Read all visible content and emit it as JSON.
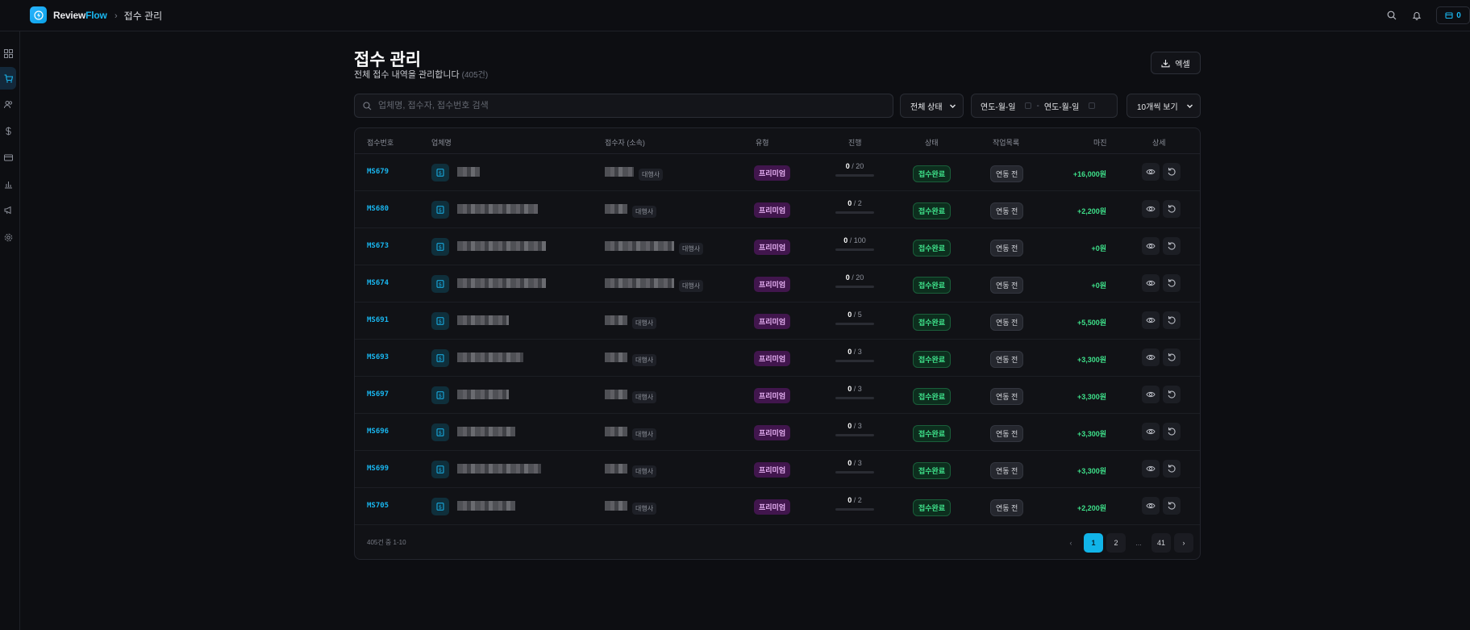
{
  "app": {
    "brand_primary": "Review",
    "brand_secondary": "Flow",
    "breadcrumb": "접수 관리",
    "credit_value": "0",
    "accent_color": "#19b6ef"
  },
  "sidebar": {
    "items": [
      {
        "icon": "dashboard-icon"
      },
      {
        "icon": "cart-icon",
        "active": true
      },
      {
        "icon": "users-icon"
      },
      {
        "icon": "dollar-icon"
      },
      {
        "icon": "card-icon"
      },
      {
        "icon": "bar-chart-icon"
      },
      {
        "icon": "megaphone-icon"
      },
      {
        "icon": "gear-icon"
      }
    ]
  },
  "header": {
    "title": "접수 관리",
    "subtitle": "전체 접수 내역을 관리합니다",
    "count": "(405건)",
    "excel_label": "엑셀"
  },
  "filters": {
    "search_placeholder": "업체명, 접수자, 접수번호 검색",
    "status_label": "전체 상태",
    "date_from": "연도-월-일",
    "date_sep": "-",
    "date_to": "연도-월-일",
    "per_page_label": "10개씩 보기"
  },
  "table": {
    "headers": [
      "접수번호",
      "업체명",
      "접수자 (소속)",
      "유형",
      "진행",
      "상태",
      "작업목록",
      "마진",
      "상세"
    ],
    "rows": [
      {
        "id": "MS679",
        "affiliation": "대행사",
        "type": "프리미엄",
        "done": "0",
        "total": "20",
        "status": "접수완료",
        "work": "연동 전",
        "margin": "+16,000원"
      },
      {
        "id": "MS680",
        "affiliation": "대행사",
        "type": "프리미엄",
        "done": "0",
        "total": "2",
        "status": "접수완료",
        "work": "연동 전",
        "margin": "+2,200원"
      },
      {
        "id": "MS673",
        "affiliation": "대행사",
        "type": "프리미엄",
        "done": "0",
        "total": "100",
        "status": "접수완료",
        "work": "연동 전",
        "margin": "+0원"
      },
      {
        "id": "MS674",
        "affiliation": "대행사",
        "type": "프리미엄",
        "done": "0",
        "total": "20",
        "status": "접수완료",
        "work": "연동 전",
        "margin": "+0원"
      },
      {
        "id": "MS691",
        "affiliation": "대행사",
        "type": "프리미엄",
        "done": "0",
        "total": "5",
        "status": "접수완료",
        "work": "연동 전",
        "margin": "+5,500원"
      },
      {
        "id": "MS693",
        "affiliation": "대행사",
        "type": "프리미엄",
        "done": "0",
        "total": "3",
        "status": "접수완료",
        "work": "연동 전",
        "margin": "+3,300원"
      },
      {
        "id": "MS697",
        "affiliation": "대행사",
        "type": "프리미엄",
        "done": "0",
        "total": "3",
        "status": "접수완료",
        "work": "연동 전",
        "margin": "+3,300원"
      },
      {
        "id": "MS696",
        "affiliation": "대행사",
        "type": "프리미엄",
        "done": "0",
        "total": "3",
        "status": "접수완료",
        "work": "연동 전",
        "margin": "+3,300원"
      },
      {
        "id": "MS699",
        "affiliation": "대행사",
        "type": "프리미엄",
        "done": "0",
        "total": "3",
        "status": "접수완료",
        "work": "연동 전",
        "margin": "+3,300원"
      },
      {
        "id": "MS705",
        "affiliation": "대행사",
        "type": "프리미엄",
        "done": "0",
        "total": "2",
        "status": "접수완료",
        "work": "연동 전",
        "margin": "+2,200원"
      }
    ],
    "footer_info": "405건 중 1-10"
  },
  "pagination": {
    "pages": [
      "1",
      "2",
      "...",
      "41"
    ],
    "current": "1"
  },
  "colors": {
    "status_green": "#3ee08a",
    "type_purple": "#e8b2f5",
    "background": "#0d0e12"
  }
}
